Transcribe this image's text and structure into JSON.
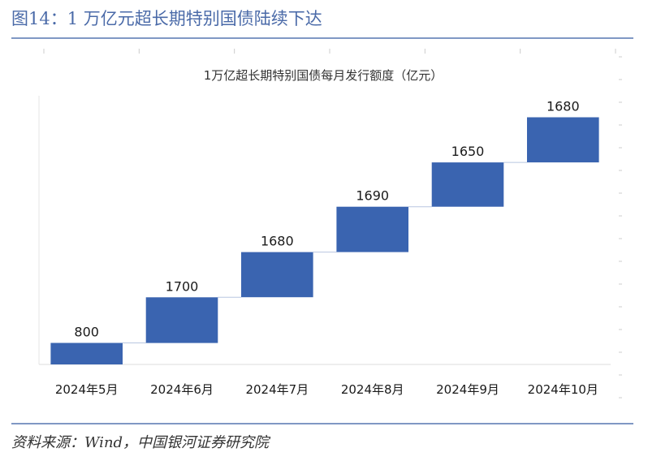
{
  "figure": {
    "title_prefix": "图14：1 万亿元超长期特别国债",
    "title_emphasis": "陆续下达",
    "source": "资料来源：Wind，中国银河证券研究院"
  },
  "colors": {
    "bar": "#3a64b0",
    "connector": "#b8c6e0",
    "title": "#4a6aa8",
    "rule": "#8098c4"
  },
  "chart_data": {
    "type": "bar",
    "subtype": "waterfall",
    "title": "1万亿超长期特别国债每月发行额度（亿元）",
    "categories": [
      "2024年5月",
      "2024年6月",
      "2024年7月",
      "2024年8月",
      "2024年9月",
      "2024年10月"
    ],
    "values": [
      800,
      1700,
      1680,
      1690,
      1650,
      1680
    ],
    "ylim": [
      0,
      10000
    ],
    "grid": false,
    "legend": "none"
  }
}
